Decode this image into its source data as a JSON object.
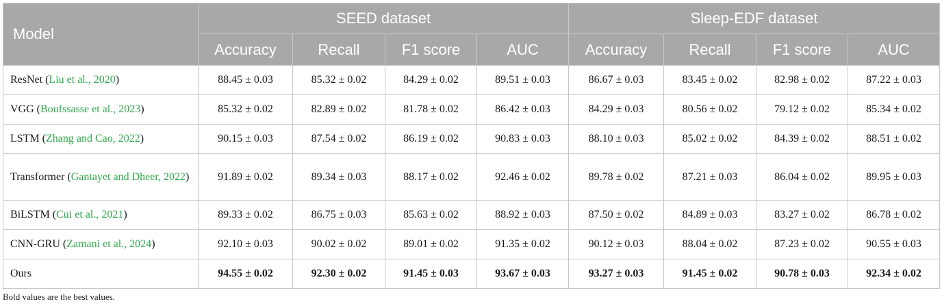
{
  "header": {
    "model": "Model",
    "groups": [
      "SEED dataset",
      "Sleep-EDF dataset"
    ],
    "metrics": [
      "Accuracy",
      "Recall",
      "F1 score",
      "AUC",
      "Accuracy",
      "Recall",
      "F1 score",
      "AUC"
    ]
  },
  "rows": [
    {
      "model": "ResNet",
      "cite": "Liu et al., 2020",
      "values": [
        "88.45 ± 0.03",
        "85.32 ± 0.02",
        "84.29 ± 0.02",
        "89.51 ± 0.03",
        "86.67 ± 0.03",
        "83.45 ± 0.02",
        "82.98 ± 0.02",
        "87.22 ± 0.03"
      ]
    },
    {
      "model": "VGG",
      "cite": "Boufssasse et al., 2023",
      "values": [
        "85.32 ± 0.02",
        "82.89 ± 0.02",
        "81.78 ± 0.02",
        "86.42 ± 0.03",
        "84.29 ± 0.03",
        "80.56 ± 0.02",
        "79.12 ± 0.02",
        "85.34 ± 0.02"
      ]
    },
    {
      "model": "LSTM",
      "cite": "Zhang and Cao, 2022",
      "values": [
        "90.15 ± 0.03",
        "87.54 ± 0.02",
        "86.19 ± 0.02",
        "90.83 ± 0.03",
        "88.10 ± 0.03",
        "85.02 ± 0.02",
        "84.39 ± 0.02",
        "88.51 ± 0.02"
      ]
    },
    {
      "model": "Transformer",
      "cite": "Gantayet and Dheer, 2022",
      "values": [
        "91.89 ± 0.02",
        "89.34 ± 0.03",
        "88.17 ± 0.02",
        "92.46 ± 0.02",
        "89.78 ± 0.02",
        "87.21 ± 0.03",
        "86.04 ± 0.02",
        "89.95 ± 0.03"
      ]
    },
    {
      "model": "BiLSTM",
      "cite": "Cui et al., 2021",
      "values": [
        "89.33 ± 0.02",
        "86.75 ± 0.03",
        "85.63 ± 0.02",
        "88.92 ± 0.03",
        "87.50 ± 0.02",
        "84.89 ± 0.03",
        "83.27 ± 0.02",
        "86.78 ± 0.02"
      ]
    },
    {
      "model": "CNN-GRU",
      "cite": "Zamani et al., 2024",
      "values": [
        "92.10 ± 0.03",
        "90.02 ± 0.02",
        "89.01 ± 0.02",
        "91.35 ± 0.02",
        "90.12 ± 0.03",
        "88.04 ± 0.02",
        "87.23 ± 0.02",
        "90.55 ± 0.03"
      ]
    },
    {
      "model": "Ours",
      "cite": "",
      "values": [
        "94.55 ± 0.02",
        "92.30 ± 0.02",
        "91.45 ± 0.03",
        "93.67 ± 0.03",
        "93.27 ± 0.03",
        "91.45 ± 0.02",
        "90.78 ± 0.03",
        "92.34 ± 0.02"
      ]
    }
  ],
  "footnote": "Bold values are the best values.",
  "colors": {
    "header_bg": "#a7a9a9",
    "cite": "#2ea84a"
  }
}
